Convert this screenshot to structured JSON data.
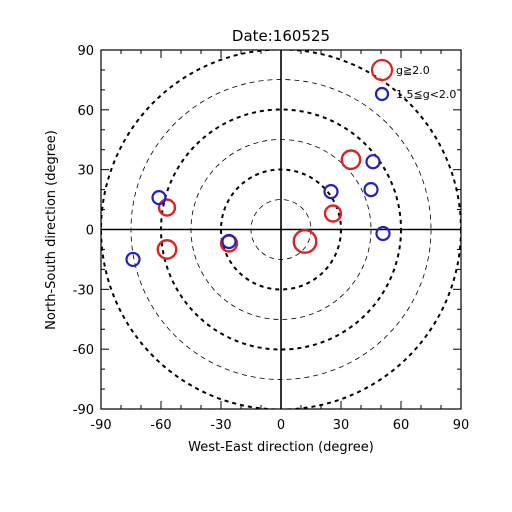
{
  "chart_data": {
    "type": "scatter",
    "title": "Date:160525",
    "xlabel": "West-East direction (degree)",
    "ylabel": "North-South direction (degree)",
    "xlim": [
      -90,
      90
    ],
    "ylim": [
      -90,
      90
    ],
    "xticks": [
      -90,
      -60,
      -30,
      0,
      30,
      60,
      90
    ],
    "yticks": [
      -90,
      -60,
      -30,
      0,
      30,
      60,
      90
    ],
    "x_tick_labels": [
      "-90",
      "-60",
      "-30",
      "0",
      "30",
      "60",
      "90"
    ],
    "y_tick_labels": [
      "-90",
      "-60",
      "-30",
      "0",
      "30",
      "60",
      "90"
    ],
    "rings": [
      {
        "radius": 15,
        "style": "thin"
      },
      {
        "radius": 30,
        "style": "thick"
      },
      {
        "radius": 45,
        "style": "thin"
      },
      {
        "radius": 60,
        "style": "thick"
      },
      {
        "radius": 75,
        "style": "thin"
      },
      {
        "radius": 90,
        "style": "thick"
      }
    ],
    "legend_position": "top-right",
    "series": [
      {
        "name": "g≧2.0",
        "color": "#dd2222",
        "points": [
          {
            "x": 12,
            "y": -6,
            "size": 3
          },
          {
            "x": 35,
            "y": 35,
            "size": 2
          },
          {
            "x": 26,
            "y": 8,
            "size": 1.5
          },
          {
            "x": -57,
            "y": 11,
            "size": 1.5
          },
          {
            "x": -57,
            "y": -10,
            "size": 2
          },
          {
            "x": -26,
            "y": -7,
            "size": 1.5
          }
        ]
      },
      {
        "name": "1.5≦g<2.0",
        "color": "#2222bb",
        "points": [
          {
            "x": 25,
            "y": 19,
            "size": 1
          },
          {
            "x": 46,
            "y": 34,
            "size": 1
          },
          {
            "x": 45,
            "y": 20,
            "size": 1
          },
          {
            "x": 51,
            "y": -2,
            "size": 1
          },
          {
            "x": -61,
            "y": 16,
            "size": 1
          },
          {
            "x": -74,
            "y": -15,
            "size": 1
          },
          {
            "x": -26,
            "y": -6,
            "size": 1
          }
        ]
      }
    ]
  }
}
